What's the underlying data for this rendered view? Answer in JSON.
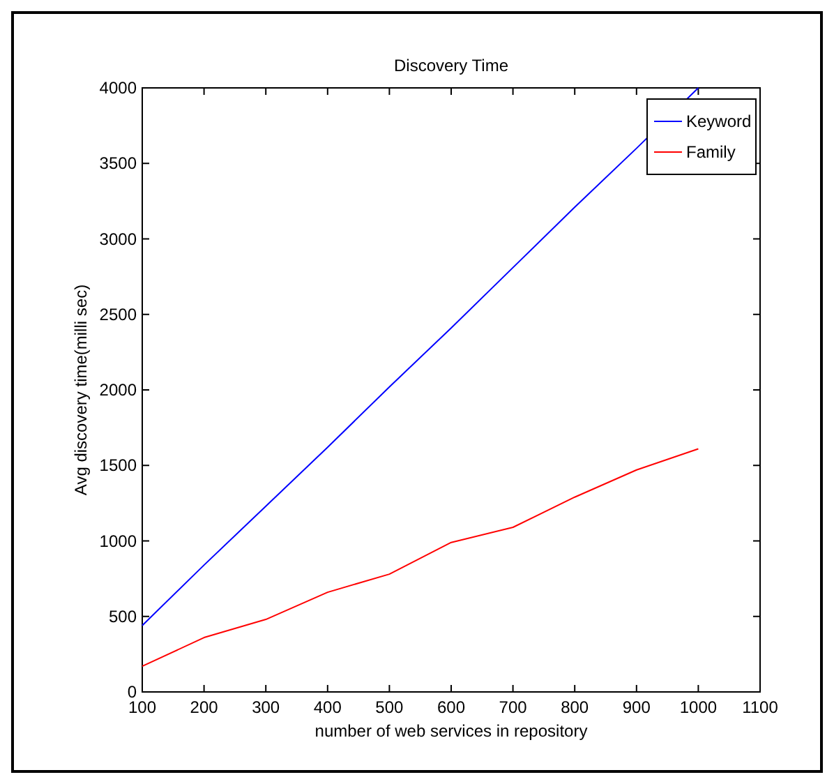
{
  "chart_data": {
    "type": "line",
    "title": "Discovery Time",
    "xlabel": "number of web services in repository",
    "ylabel": "Avg discovery time(milli sec)",
    "x": [
      100,
      200,
      300,
      400,
      500,
      600,
      700,
      800,
      900,
      1000
    ],
    "series": [
      {
        "name": "Keyword",
        "color": "#0000ff",
        "values": [
          440,
          840,
          1230,
          1620,
          2020,
          2410,
          2810,
          3210,
          3600,
          4000
        ]
      },
      {
        "name": "Family",
        "color": "#ff0000",
        "values": [
          170,
          360,
          480,
          660,
          780,
          990,
          1090,
          1290,
          1470,
          1610
        ]
      }
    ],
    "xlim": [
      100,
      1100
    ],
    "xticks": [
      100,
      200,
      300,
      400,
      500,
      600,
      700,
      800,
      900,
      1000,
      1100
    ],
    "ylim": [
      0,
      4000
    ],
    "yticks": [
      0,
      500,
      1000,
      1500,
      2000,
      2500,
      3000,
      3500,
      4000
    ],
    "grid": false,
    "legend": "top right",
    "marker": "none",
    "line_style": "solid"
  }
}
